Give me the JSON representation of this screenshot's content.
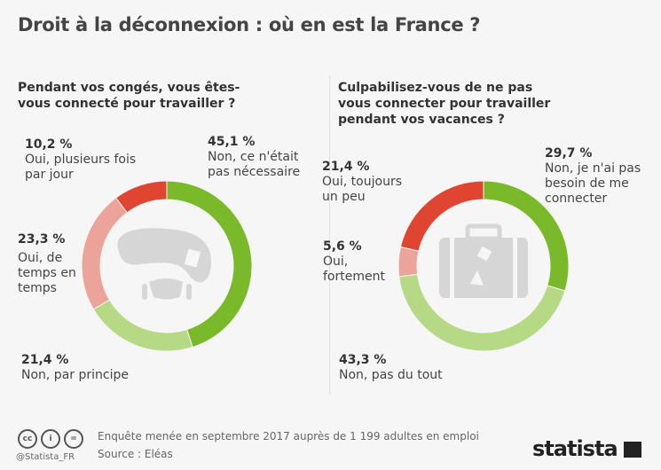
{
  "title": "Droit à la déconnexion : où en est la France ?",
  "colors": {
    "dark_green": "#7ab929",
    "light_green": "#b6d986",
    "pink": "#eca39a",
    "red": "#df4530",
    "icon": "#d6d6d6"
  },
  "chart_data": [
    {
      "type": "pie",
      "donut": true,
      "title": "Pendant vos congés, vous êtes-vous connecté pour travailler ?",
      "center_icon": "desk-chair-icon",
      "slices": [
        {
          "label": "Non, ce n'était pas nécessaire",
          "value": 45.1,
          "value_label": "45,1 %",
          "color": "#7ab929"
        },
        {
          "label": "Non, par principe",
          "value": 21.4,
          "value_label": "21,4 %",
          "color": "#b6d986"
        },
        {
          "label": "Oui, de temps en temps",
          "value": 23.3,
          "value_label": "23,3 %",
          "color": "#eca39a"
        },
        {
          "label": "Oui, plusieurs fois par jour",
          "value": 10.2,
          "value_label": "10,2 %",
          "color": "#df4530"
        }
      ]
    },
    {
      "type": "pie",
      "donut": true,
      "title": "Culpabilisez-vous de ne pas vous connecter pour travailler pendant vos vacances ?",
      "center_icon": "suitcase-icon",
      "slices": [
        {
          "label": "Non, je n'ai pas besoin de me connecter",
          "value": 29.7,
          "value_label": "29,7 %",
          "color": "#7ab929"
        },
        {
          "label": "Non, pas du tout",
          "value": 43.3,
          "value_label": "43,3 %",
          "color": "#b6d986"
        },
        {
          "label": "Oui, fortement",
          "value": 5.6,
          "value_label": "5,6 %",
          "color": "#eca39a"
        },
        {
          "label": "Oui, toujours un peu",
          "value": 21.4,
          "value_label": "21,4 %",
          "color": "#df4530"
        }
      ]
    }
  ],
  "footer": {
    "note": "Enquête menée en septembre 2017 auprès de 1 199 adultes en emploi",
    "source": "Source : Eléas",
    "handle": "@Statista_FR",
    "license_icons": [
      "cc",
      "by",
      "nd"
    ],
    "logo": "statista"
  }
}
